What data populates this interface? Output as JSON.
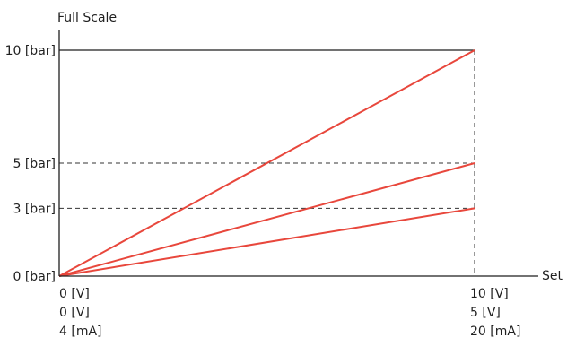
{
  "chart_data": {
    "type": "line",
    "ylabel": "Full Scale",
    "xlabel": "Set",
    "ylim": [
      0,
      10
    ],
    "y_ticks": [
      {
        "value": 0,
        "label": "0 [bar]"
      },
      {
        "value": 3,
        "label": "3 [bar]"
      },
      {
        "value": 5,
        "label": "5 [bar]"
      },
      {
        "value": 10,
        "label": "10 [bar]"
      }
    ],
    "x_tick_rows": [
      {
        "start": "0 [V]",
        "end": "10 [V]"
      },
      {
        "start": "0 [V]",
        "end": "5   [V]"
      },
      {
        "start": "4 [mA]",
        "end": "20 [mA]"
      }
    ],
    "x": [
      0,
      1
    ],
    "series": [
      {
        "values": [
          0,
          10
        ]
      },
      {
        "values": [
          0,
          5
        ]
      },
      {
        "values": [
          0,
          3
        ]
      }
    ],
    "colors": {
      "series": "#e8473c",
      "axis": "#1f1f1f"
    }
  }
}
